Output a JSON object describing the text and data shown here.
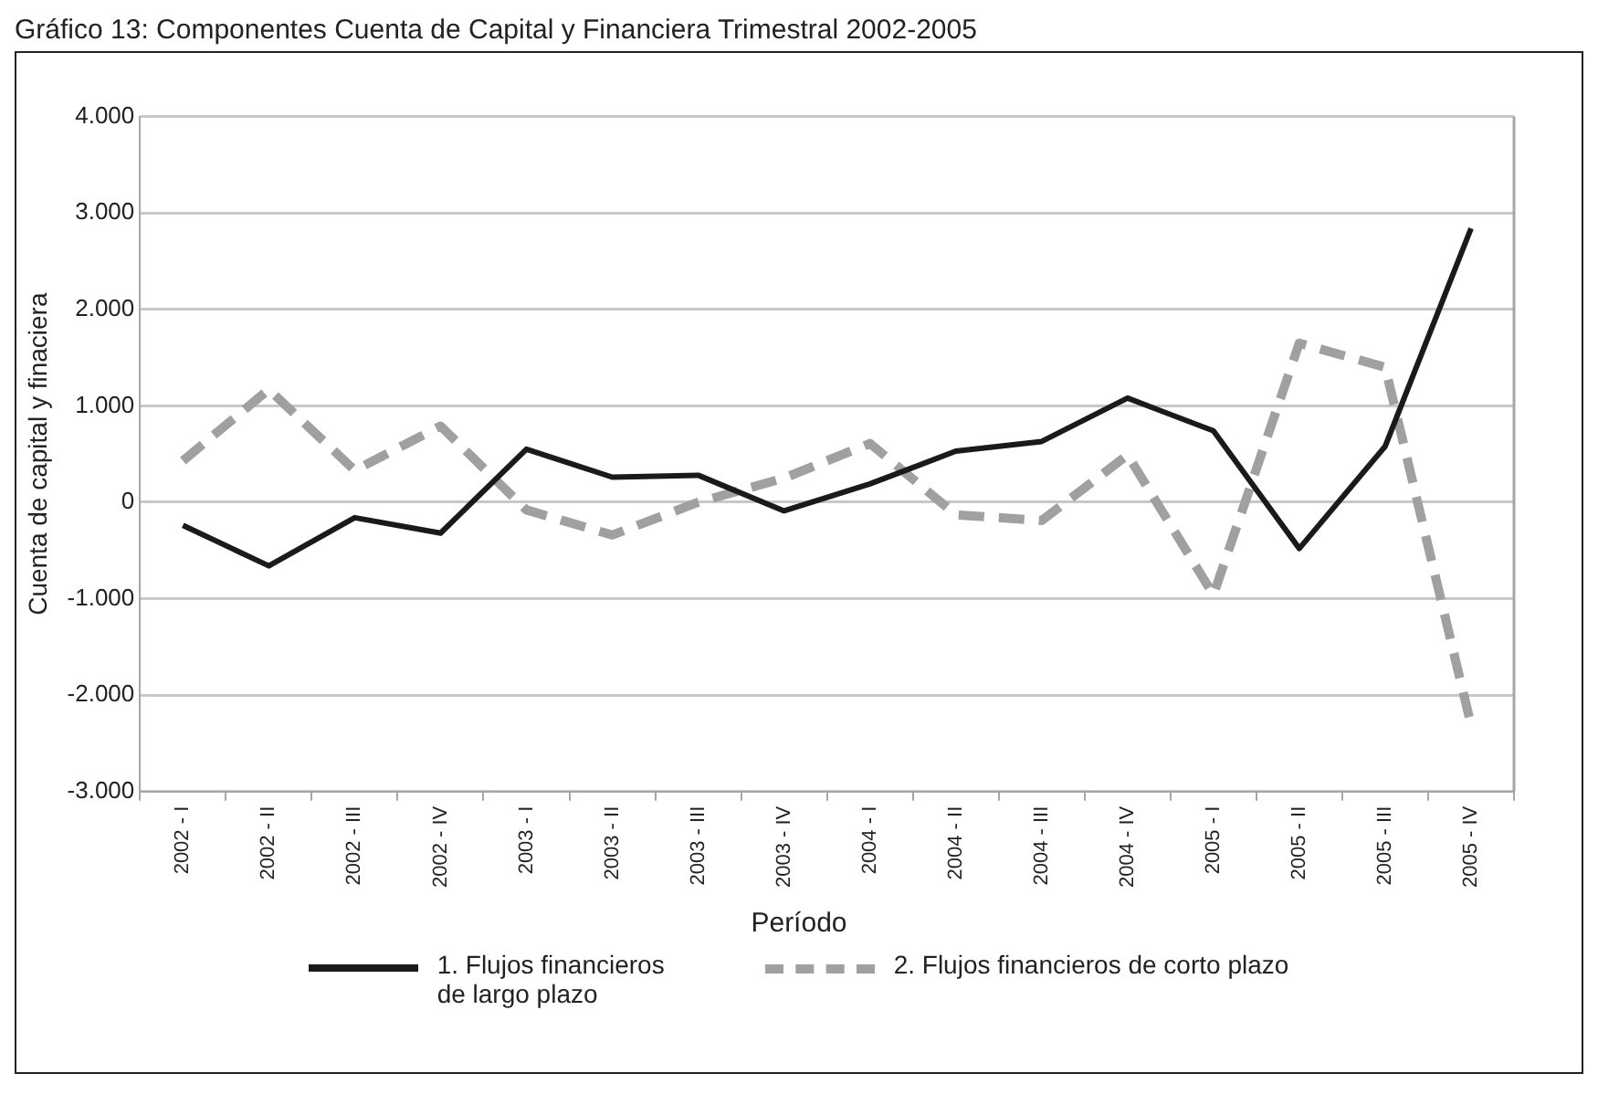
{
  "chart_data": {
    "type": "line",
    "title": "Gráfico 13: Componentes Cuenta de Capital y Financiera Trimestral 2002-2005",
    "xlabel": "Período",
    "ylabel": "Cuenta de capital y finaciera",
    "categories": [
      "2002 - I",
      "2002 - II",
      "2002 - III",
      "2002 - IV",
      "2003 - I",
      "2003 - II",
      "2003 - III",
      "2003 - IV",
      "2004 - I",
      "2004 - II",
      "2004 - III",
      "2004 - IV",
      "2005 - I",
      "2005 - II",
      "2005 - III",
      "2005 - IV"
    ],
    "series": [
      {
        "name": "1. Flujos financieros de largo plazo",
        "color": "#1a1a1a",
        "line_style": "solid",
        "values": [
          -240,
          -660,
          -160,
          -320,
          550,
          260,
          280,
          -90,
          190,
          530,
          630,
          1080,
          740,
          -480,
          580,
          2840
        ]
      },
      {
        "name": "2. Flujos financieros de corto plazo",
        "color": "#a0a0a0",
        "line_style": "dashed",
        "values": [
          430,
          1170,
          330,
          790,
          -80,
          -340,
          0,
          250,
          610,
          -130,
          -190,
          490,
          -960,
          1650,
          1400,
          -2310
        ]
      }
    ],
    "ylim": [
      -3000,
      4000
    ],
    "yticks": [
      {
        "value": -3000,
        "label": "-3.000"
      },
      {
        "value": -2000,
        "label": "-2.000"
      },
      {
        "value": -1000,
        "label": "-1.000"
      },
      0,
      {
        "value": 1000,
        "label": "1.000"
      },
      {
        "value": 2000,
        "label": "2.000"
      },
      {
        "value": 3000,
        "label": "3.000"
      },
      {
        "value": 4000,
        "label": "4.000"
      }
    ],
    "grid": "y",
    "legend": "bottom",
    "marker": "none"
  }
}
